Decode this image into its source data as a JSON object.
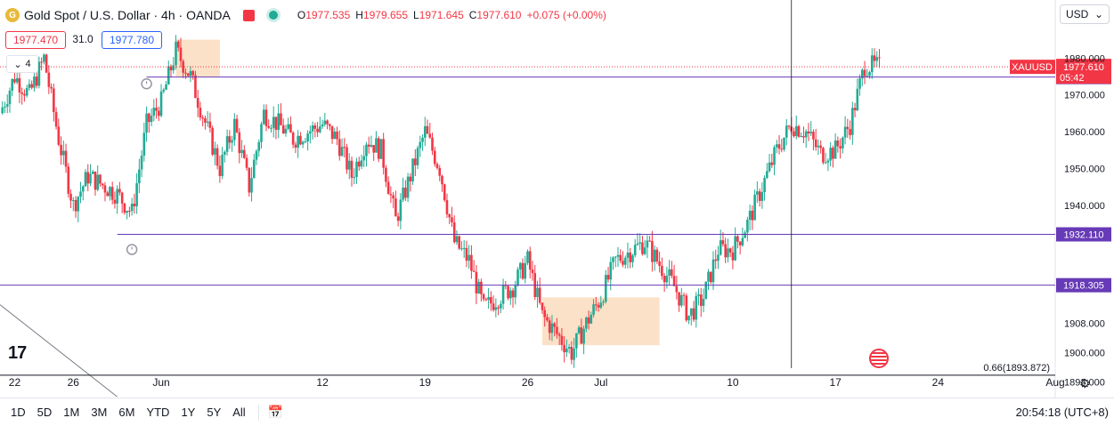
{
  "header": {
    "logo_glyph": "G",
    "symbol": "Gold Spot / U.S. Dollar · 4h · OANDA",
    "ohlc": [
      {
        "label": "O",
        "value": "1977.535"
      },
      {
        "label": "H",
        "value": "1979.655"
      },
      {
        "label": "L",
        "value": "1971.645"
      },
      {
        "label": "C",
        "value": "1977.610"
      }
    ],
    "change": "+0.075 (+0.00%)"
  },
  "trade": {
    "bid": "1977.470",
    "spread": "31.0",
    "ask": "1977.780"
  },
  "indicator_count": "4",
  "currency_button": {
    "label": "USD",
    "chevron": "⌄"
  },
  "tv_logo": "17",
  "chart_data": {
    "type": "candlestick",
    "symbol": "XAUUSD",
    "timeframe": "4h",
    "y_ticks": [
      1892.0,
      1900.0,
      1908.0,
      1940.0,
      1950.0,
      1960.0,
      1970.0,
      1980.0
    ],
    "ylim": [
      1889,
      1989
    ],
    "x_ticks": [
      {
        "label": "22",
        "date": "2023-05-22"
      },
      {
        "label": "26",
        "date": "2023-05-26"
      },
      {
        "label": "Jun",
        "date": "2023-06-01"
      },
      {
        "label": "12",
        "date": "2023-06-12"
      },
      {
        "label": "19",
        "date": "2023-06-19"
      },
      {
        "label": "26",
        "date": "2023-06-26"
      },
      {
        "label": "Jul",
        "date": "2023-07-01"
      },
      {
        "label": "10",
        "date": "2023-07-10"
      },
      {
        "label": "17",
        "date": "2023-07-17"
      },
      {
        "label": "24",
        "date": "2023-07-24"
      },
      {
        "label": "Aug",
        "date": "2023-08-01"
      }
    ],
    "xlim": [
      "2023-05-21",
      "2023-08-01"
    ],
    "path": [
      [
        "2023-05-21",
        1965
      ],
      [
        "2023-05-22",
        1975
      ],
      [
        "2023-05-23",
        1970
      ],
      [
        "2023-05-24",
        1980
      ],
      [
        "2023-05-25",
        1958
      ],
      [
        "2023-05-26",
        1940
      ],
      [
        "2023-05-27",
        1948
      ],
      [
        "2023-05-29",
        1943
      ],
      [
        "2023-05-30",
        1938
      ],
      [
        "2023-05-31",
        1962
      ],
      [
        "2023-06-01",
        1968
      ],
      [
        "2023-06-02",
        1982
      ],
      [
        "2023-06-03",
        1975
      ],
      [
        "2023-06-05",
        1950
      ],
      [
        "2023-06-06",
        1962
      ],
      [
        "2023-06-07",
        1945
      ],
      [
        "2023-06-08",
        1965
      ],
      [
        "2023-06-09",
        1962
      ],
      [
        "2023-06-10",
        1958
      ],
      [
        "2023-06-12",
        1962
      ],
      [
        "2023-06-13",
        1958
      ],
      [
        "2023-06-14",
        1948
      ],
      [
        "2023-06-15",
        1958
      ],
      [
        "2023-06-16",
        1955
      ],
      [
        "2023-06-17",
        1936
      ],
      [
        "2023-06-19",
        1960
      ],
      [
        "2023-06-20",
        1950
      ],
      [
        "2023-06-21",
        1930
      ],
      [
        "2023-06-22",
        1925
      ],
      [
        "2023-06-23",
        1912
      ],
      [
        "2023-06-25",
        1918
      ],
      [
        "2023-06-26",
        1925
      ],
      [
        "2023-06-27",
        1910
      ],
      [
        "2023-06-28",
        1905
      ],
      [
        "2023-06-29",
        1900
      ],
      [
        "2023-06-30",
        1908
      ],
      [
        "2023-07-01",
        1915
      ],
      [
        "2023-07-02",
        1925
      ],
      [
        "2023-07-04",
        1930
      ],
      [
        "2023-07-06",
        1918
      ],
      [
        "2023-07-07",
        1910
      ],
      [
        "2023-07-08",
        1915
      ],
      [
        "2023-07-09",
        1928
      ],
      [
        "2023-07-10",
        1928
      ],
      [
        "2023-07-11",
        1935
      ],
      [
        "2023-07-12",
        1945
      ],
      [
        "2023-07-13",
        1955
      ],
      [
        "2023-07-14",
        1962
      ],
      [
        "2023-07-15",
        1960
      ],
      [
        "2023-07-16",
        1954
      ],
      [
        "2023-07-17",
        1955
      ],
      [
        "2023-07-18",
        1962
      ],
      [
        "2023-07-19",
        1978
      ],
      [
        "2023-07-20",
        1977.61
      ]
    ],
    "horizontal_lines": [
      {
        "value": 1974.835,
        "label": "1974.835",
        "color": "#673ab7",
        "from": "2023-05-31"
      },
      {
        "value": 1932.11,
        "label": "1932.110",
        "color": "#673ab7",
        "from": "2023-05-29"
      },
      {
        "value": 1918.305,
        "label": "1918.305",
        "color": "#673ab7",
        "from": "2023-05-21"
      },
      {
        "value": 1893.872,
        "label": "0.66(1893.872)",
        "color": "#131722",
        "from": "2023-05-21"
      }
    ],
    "current_price": {
      "value": 1977.61,
      "label": "1977.610",
      "countdown": "05:42",
      "symbol_label": "XAUUSD",
      "color": "#f23645"
    },
    "highlight_zones": [
      {
        "from": "2023-06-02",
        "to": "2023-06-05",
        "low": 1975,
        "high": 1985
      },
      {
        "from": "2023-06-27",
        "to": "2023-07-05",
        "low": 1902,
        "high": 1915
      }
    ],
    "trendline": {
      "from": [
        "2023-05-21",
        1913
      ],
      "to": [
        "2023-05-29",
        1888
      ]
    },
    "crosshair_date": "2023-07-14",
    "alarms": [
      [
        "2023-05-31",
        1973
      ],
      [
        "2023-05-30",
        1928
      ]
    ],
    "colors": {
      "up": "#22ab94",
      "down": "#f23645",
      "grid": "#f0f3fa"
    }
  },
  "ranges": [
    "1D",
    "5D",
    "1M",
    "3M",
    "6M",
    "YTD",
    "1Y",
    "5Y",
    "All"
  ],
  "calendar_glyph": "📅",
  "clock": "20:54:18 (UTC+8)",
  "settings_glyph": "⚙"
}
